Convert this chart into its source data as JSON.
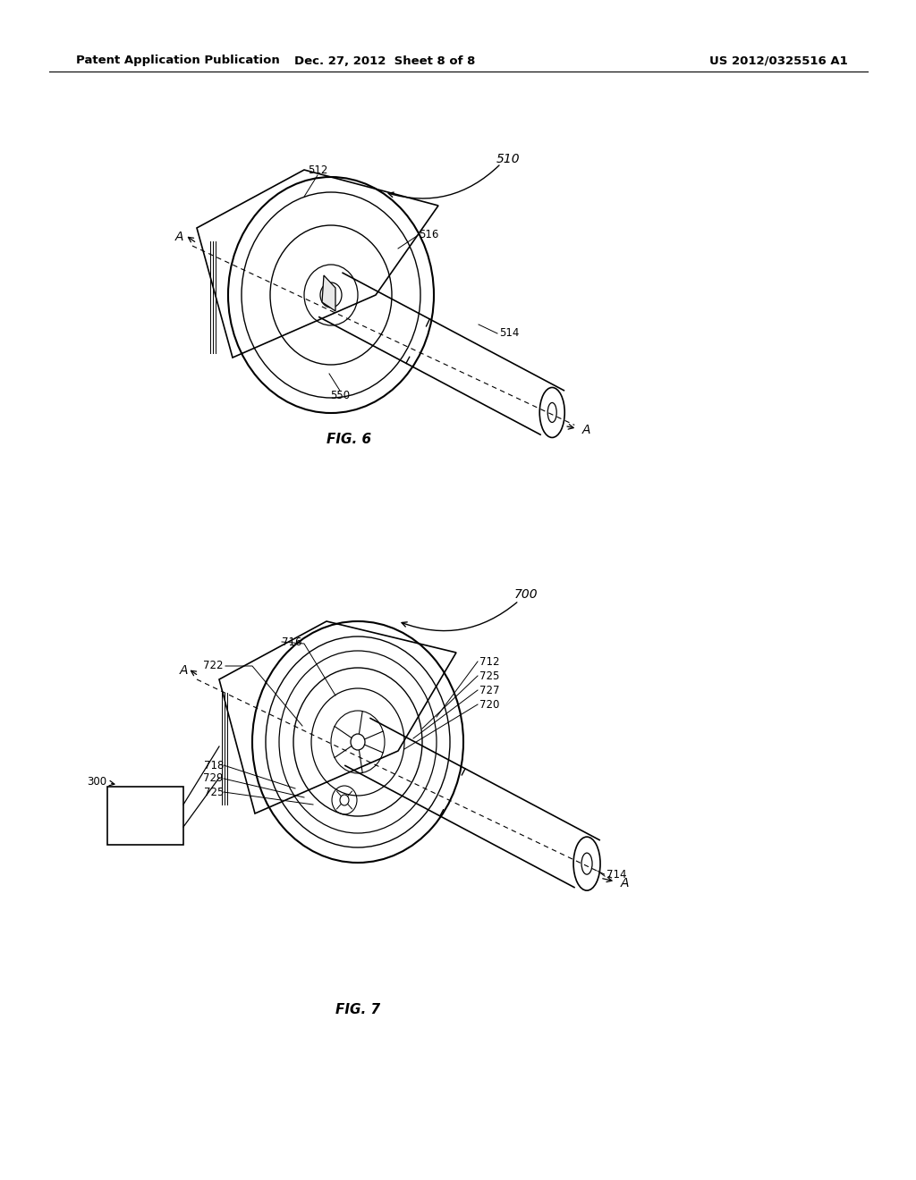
{
  "background_color": "#ffffff",
  "header_left": "Patent Application Publication",
  "header_center": "Dec. 27, 2012  Sheet 8 of 8",
  "header_right": "US 2012/0325516 A1",
  "fig6_label": "FIG. 6",
  "fig7_label": "FIG. 7",
  "line_color": "#000000",
  "text_color": "#000000",
  "font_size_header": 9.5,
  "font_size_labels": 8.5,
  "font_size_fig": 11
}
